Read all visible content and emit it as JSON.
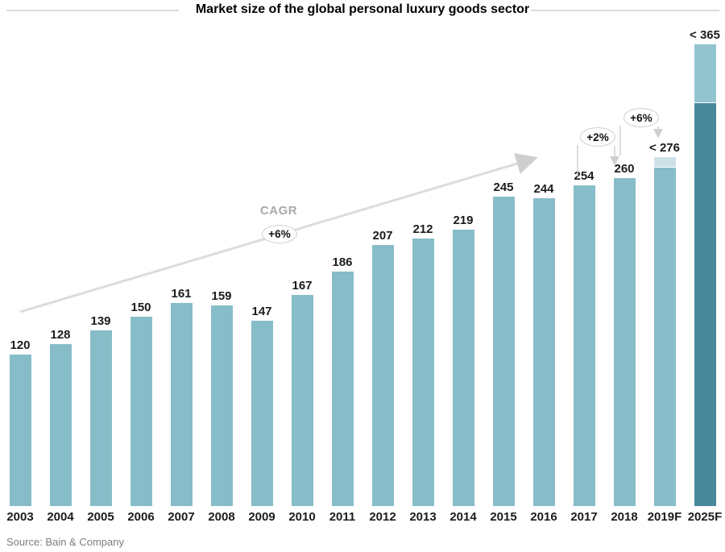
{
  "title": "Market size of the global personal luxury goods sector",
  "source": "Source: Bain & Company",
  "colors": {
    "bar_primary": "#87bdc9",
    "bar_light": "#92c4cf",
    "bar_dark": "#47899b",
    "bar_pale": "#cfe1e8",
    "label_text": "#1c1c1c",
    "muted_gray": "#a9a9a9",
    "line_gray": "#dcdcdc"
  },
  "annotations": {
    "cagr_label": "CAGR",
    "cagr_value": "+6%",
    "callout_2018": "+2%",
    "callout_2019": "+6%"
  },
  "chart_data": {
    "type": "bar",
    "title": "Market size of the global personal luxury goods sector",
    "xlabel": "",
    "ylabel": "",
    "ylim": [
      0,
      390
    ],
    "grid": false,
    "legend": "none",
    "categories": [
      "2003",
      "2004",
      "2005",
      "2006",
      "2007",
      "2008",
      "2009",
      "2010",
      "2011",
      "2012",
      "2013",
      "2014",
      "2015",
      "2016",
      "2017",
      "2018",
      "2019F",
      "2025F"
    ],
    "bars": [
      {
        "category": "2003",
        "label": "120",
        "value": 120,
        "segments": [
          {
            "value": 120,
            "color": "bar_primary"
          }
        ]
      },
      {
        "category": "2004",
        "label": "128",
        "value": 128,
        "segments": [
          {
            "value": 128,
            "color": "bar_primary"
          }
        ]
      },
      {
        "category": "2005",
        "label": "139",
        "value": 139,
        "segments": [
          {
            "value": 139,
            "color": "bar_primary"
          }
        ]
      },
      {
        "category": "2006",
        "label": "150",
        "value": 150,
        "segments": [
          {
            "value": 150,
            "color": "bar_primary"
          }
        ]
      },
      {
        "category": "2007",
        "label": "161",
        "value": 161,
        "segments": [
          {
            "value": 161,
            "color": "bar_primary"
          }
        ]
      },
      {
        "category": "2008",
        "label": "159",
        "value": 159,
        "segments": [
          {
            "value": 159,
            "color": "bar_primary"
          }
        ]
      },
      {
        "category": "2009",
        "label": "147",
        "value": 147,
        "segments": [
          {
            "value": 147,
            "color": "bar_primary"
          }
        ]
      },
      {
        "category": "2010",
        "label": "167",
        "value": 167,
        "segments": [
          {
            "value": 167,
            "color": "bar_primary"
          }
        ]
      },
      {
        "category": "2011",
        "label": "186",
        "value": 186,
        "segments": [
          {
            "value": 186,
            "color": "bar_primary"
          }
        ]
      },
      {
        "category": "2012",
        "label": "207",
        "value": 207,
        "segments": [
          {
            "value": 207,
            "color": "bar_primary"
          }
        ]
      },
      {
        "category": "2013",
        "label": "212",
        "value": 212,
        "segments": [
          {
            "value": 212,
            "color": "bar_primary"
          }
        ]
      },
      {
        "category": "2014",
        "label": "219",
        "value": 219,
        "segments": [
          {
            "value": 219,
            "color": "bar_primary"
          }
        ]
      },
      {
        "category": "2015",
        "label": "245",
        "value": 245,
        "segments": [
          {
            "value": 245,
            "color": "bar_primary"
          }
        ]
      },
      {
        "category": "2016",
        "label": "244",
        "value": 244,
        "segments": [
          {
            "value": 244,
            "color": "bar_primary"
          }
        ]
      },
      {
        "category": "2017",
        "label": "254",
        "value": 254,
        "segments": [
          {
            "value": 254,
            "color": "bar_primary"
          }
        ]
      },
      {
        "category": "2018",
        "label": "260",
        "value": 260,
        "segments": [
          {
            "value": 260,
            "color": "bar_primary"
          }
        ]
      },
      {
        "category": "2019F",
        "label": "< 276",
        "value": 276,
        "segments": [
          {
            "value": 268,
            "color": "bar_primary"
          },
          {
            "value": 8,
            "color": "bar_pale"
          }
        ]
      },
      {
        "category": "2025F",
        "label": "< 365",
        "value": 365,
        "segments": [
          {
            "value": 319,
            "color": "bar_dark"
          },
          {
            "value": 46,
            "color": "bar_light"
          }
        ]
      }
    ]
  }
}
